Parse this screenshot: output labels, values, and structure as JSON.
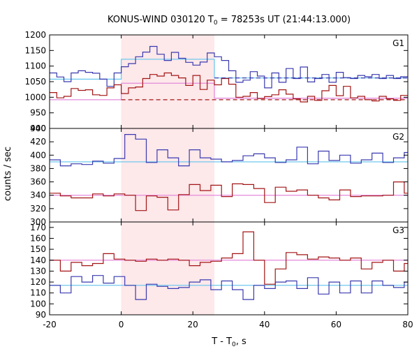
{
  "chart_data": {
    "type": "line",
    "title_parts": {
      "before": "KONUS-WIND 030120 T",
      "sub": "0",
      "after": " = 78253s UT (21:44:13.000)"
    },
    "xlabel_parts": {
      "before": "T - T",
      "sub": "0",
      "after": ", s"
    },
    "ylabel": "counts / sec",
    "xlim": [
      -20,
      80
    ],
    "x_ticks": [
      -20,
      0,
      20,
      40,
      60,
      80
    ],
    "grid": false,
    "highlight_interval": [
      0,
      26
    ],
    "colors": {
      "blue": "#3a3ab0",
      "red": "#a31515",
      "cyan": "#6fc8ee",
      "pink": "#e48adb",
      "highlight": "#fde8ea"
    },
    "panels": [
      {
        "label": "G1",
        "ylim": [
          900,
          1200
        ],
        "y_ticks": [
          900,
          950,
          1000,
          1050,
          1100,
          1150,
          1200
        ],
        "bin_start": -20,
        "bin_width": 2,
        "blue": [
          1078,
          1065,
          1050,
          1078,
          1085,
          1080,
          1077,
          1058,
          1035,
          1078,
          1098,
          1108,
          1130,
          1145,
          1163,
          1138,
          1118,
          1144,
          1125,
          1112,
          1103,
          1113,
          1142,
          1130,
          1118,
          1085,
          1048,
          1055,
          1082,
          1068,
          1030,
          1078,
          1048,
          1092,
          1060,
          1097,
          1049,
          1060,
          1073,
          1048,
          1080,
          1063,
          1060,
          1070,
          1066,
          1073,
          1060,
          1070,
          1060,
          1066
        ],
        "red": [
          1015,
          998,
          1003,
          1028,
          1022,
          1024,
          1008,
          1006,
          1030,
          1040,
          1012,
          1030,
          1033,
          1060,
          1073,
          1068,
          1078,
          1070,
          1062,
          1038,
          1070,
          1025,
          1055,
          1040,
          1060,
          1042,
          1000,
          1003,
          1015,
          996,
          1002,
          1008,
          1024,
          1010,
          995,
          985,
          1003,
          990,
          1021,
          1038,
          1005,
          1035,
          998,
          1003,
          992,
          988,
          1003,
          995,
          990,
          1006
        ],
        "cyan_steps": [
          {
            "x0": -20,
            "x1": 0,
            "y": 1058
          },
          {
            "x0": 0,
            "x1": 26,
            "y": 1122
          },
          {
            "x0": 26,
            "x1": 80,
            "y": 1062
          }
        ],
        "pink_steps": [
          {
            "x0": -20,
            "x1": 0,
            "y": 992
          },
          {
            "x0": 0,
            "x1": 26,
            "y": 1045
          },
          {
            "x0": 26,
            "x1": 80,
            "y": 997
          }
        ],
        "blue_dashed": 1062,
        "red_dashed": 992,
        "cyan_level": null,
        "pink_level": null
      },
      {
        "label": "G2",
        "ylim": [
          300,
          440
        ],
        "y_ticks": [
          300,
          320,
          340,
          360,
          380,
          400,
          420,
          440
        ],
        "bin_start": -20,
        "bin_width": 3,
        "blue": [
          393,
          384,
          387,
          386,
          391,
          388,
          395,
          431,
          424,
          389,
          408,
          396,
          384,
          408,
          396,
          394,
          390,
          392,
          399,
          402,
          396,
          389,
          393,
          412,
          387,
          406,
          392,
          400,
          388,
          393,
          403,
          389,
          396,
          404,
          389
        ],
        "red": [
          343,
          339,
          336,
          336,
          342,
          339,
          342,
          340,
          317,
          339,
          337,
          318,
          341,
          356,
          347,
          355,
          338,
          357,
          356,
          350,
          329,
          352,
          346,
          348,
          340,
          336,
          333,
          348,
          338,
          339,
          339,
          340,
          360,
          343,
          341
        ],
        "cyan_level": 390,
        "pink_level": 340,
        "cyan_steps": null,
        "pink_steps": null,
        "blue_dashed": null,
        "red_dashed": null
      },
      {
        "label": "G3",
        "ylim": [
          90,
          175
        ],
        "y_ticks": [
          90,
          100,
          110,
          120,
          130,
          140,
          150,
          160,
          170
        ],
        "bin_start": -20,
        "bin_width": 3,
        "blue": [
          117,
          110,
          125,
          120,
          126,
          119,
          125,
          117,
          104,
          118,
          116,
          114,
          115,
          120,
          122,
          113,
          121,
          113,
          104,
          117,
          114,
          120,
          121,
          114,
          124,
          109,
          120,
          110,
          121,
          110,
          121,
          117,
          115,
          120,
          108
        ],
        "red": [
          140,
          130,
          138,
          135,
          137,
          146,
          141,
          140,
          139,
          141,
          140,
          141,
          140,
          135,
          138,
          139,
          142,
          146,
          166,
          140,
          118,
          132,
          147,
          145,
          141,
          143,
          142,
          140,
          142,
          132,
          138,
          140,
          130,
          137,
          148
        ],
        "cyan_level": 117,
        "pink_level": 140,
        "cyan_steps": null,
        "pink_steps": null,
        "blue_dashed": null,
        "red_dashed": null
      }
    ]
  }
}
